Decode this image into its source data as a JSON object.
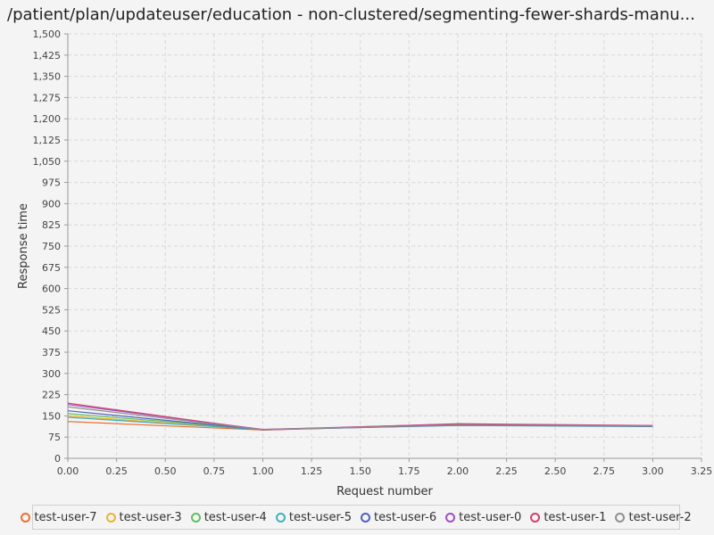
{
  "chart_data": {
    "type": "line",
    "title": "/patient/plan/updateuser/education - non-clustered/segmenting-fewer-shards-manu...",
    "xlabel": "Request number",
    "ylabel": "Response time",
    "xlim": [
      0,
      3.25
    ],
    "ylim": [
      0,
      1500
    ],
    "xticks": [
      0,
      0.25,
      0.5,
      0.75,
      1,
      1.25,
      1.5,
      1.75,
      2,
      2.25,
      2.5,
      2.75,
      3,
      3.25
    ],
    "xtick_labels": [
      "0.00",
      "0.25",
      "0.50",
      "0.75",
      "1.00",
      "1.25",
      "1.50",
      "1.75",
      "2.00",
      "2.25",
      "2.50",
      "2.75",
      "3.00",
      "3.25"
    ],
    "yticks": [
      0,
      75,
      150,
      225,
      300,
      375,
      450,
      525,
      600,
      675,
      750,
      825,
      900,
      975,
      1050,
      1125,
      1200,
      1275,
      1350,
      1425,
      1500
    ],
    "ytick_labels": [
      "0",
      "75",
      "150",
      "225",
      "300",
      "375",
      "450",
      "525",
      "600",
      "675",
      "750",
      "825",
      "900",
      "975",
      "1,050",
      "1,125",
      "1,200",
      "1,275",
      "1,350",
      "1,425",
      "1,500"
    ],
    "grid": true,
    "legend_position": "bottom",
    "x": [
      0,
      1,
      2,
      3
    ],
    "series": [
      {
        "name": "test-user-7",
        "color": "#f07030",
        "values": [
          130,
          100,
          118,
          113
        ]
      },
      {
        "name": "test-user-3",
        "color": "#f0b030",
        "values": [
          150,
          101,
          117,
          113
        ]
      },
      {
        "name": "test-user-4",
        "color": "#60c060",
        "values": [
          158,
          102,
          118,
          114
        ]
      },
      {
        "name": "test-user-5",
        "color": "#40b0c0",
        "values": [
          145,
          101,
          116,
          112
        ]
      },
      {
        "name": "test-user-6",
        "color": "#5060c0",
        "values": [
          168,
          101,
          117,
          113
        ]
      },
      {
        "name": "test-user-0",
        "color": "#a050c0",
        "values": [
          190,
          102,
          121,
          115
        ]
      },
      {
        "name": "test-user-1",
        "color": "#d04070",
        "values": [
          195,
          100,
          122,
          116
        ]
      },
      {
        "name": "test-user-2",
        "color": "#909090",
        "values": [
          182,
          101,
          118,
          114
        ]
      }
    ]
  }
}
